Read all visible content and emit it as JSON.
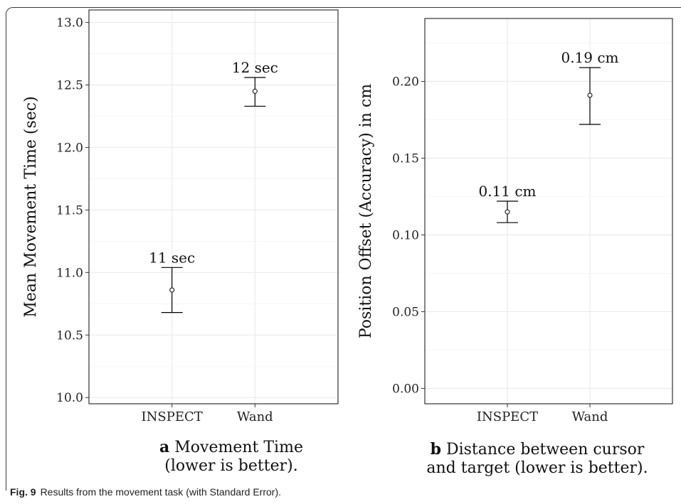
{
  "figure": {
    "label": "Fig. 9",
    "caption": "Results from the movement task (with Standard Error)."
  },
  "panels": [
    {
      "letter": "a",
      "caption_line1": "Movement Time",
      "caption_line2": "(lower is better)."
    },
    {
      "letter": "b",
      "caption_line1": "Distance between cursor",
      "caption_line2": "and target (lower is better)."
    }
  ],
  "colors": {
    "grid": "#ebebeb",
    "axis": "#333333",
    "errorbar": "#000000",
    "point_fill": "#ffffff"
  },
  "chart_data": [
    {
      "type": "scatter",
      "title": "",
      "xlabel": "",
      "ylabel": "Mean Movement Time (sec)",
      "categories": [
        "INSPECT",
        "Wand"
      ],
      "values": [
        10.86,
        12.45
      ],
      "error_low": [
        10.68,
        12.33
      ],
      "error_high": [
        11.04,
        12.56
      ],
      "labels": [
        "11 sec",
        "12 sec"
      ],
      "ylim": [
        9.95,
        13.1
      ],
      "yticks": [
        10.0,
        10.5,
        11.0,
        11.5,
        12.0,
        12.5,
        13.0
      ],
      "ytick_labels": [
        "10.0",
        "10.5",
        "11.0",
        "11.5",
        "12.0",
        "12.5",
        "13.0"
      ],
      "grid": true
    },
    {
      "type": "scatter",
      "title": "",
      "xlabel": "",
      "ylabel": "Position Offset (Accuracy) in cm",
      "categories": [
        "INSPECT",
        "Wand"
      ],
      "values": [
        0.115,
        0.191
      ],
      "error_low": [
        0.108,
        0.172
      ],
      "error_high": [
        0.122,
        0.209
      ],
      "labels": [
        "0.11 cm",
        "0.19 cm"
      ],
      "ylim": [
        -0.01,
        0.241
      ],
      "yticks": [
        0.0,
        0.05,
        0.1,
        0.15,
        0.2
      ],
      "ytick_labels": [
        "0.00",
        "0.05",
        "0.10",
        "0.15",
        "0.20"
      ],
      "grid": true
    }
  ]
}
